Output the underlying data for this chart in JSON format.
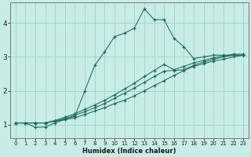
{
  "xlabel": "Humidex (Indice chaleur)",
  "bg_color": "#c8ece6",
  "grid_color": "#9fd4ca",
  "line_color": "#1e6b5e",
  "xlim": [
    -0.5,
    23.5
  ],
  "ylim": [
    0.6,
    4.6
  ],
  "xticks": [
    0,
    1,
    2,
    3,
    4,
    5,
    6,
    7,
    8,
    9,
    10,
    11,
    12,
    13,
    14,
    15,
    16,
    17,
    18,
    19,
    20,
    21,
    22,
    23
  ],
  "yticks": [
    1,
    2,
    3,
    4
  ],
  "lines": [
    {
      "x": [
        0,
        1,
        2,
        3,
        4,
        5,
        6,
        7,
        8,
        9,
        10,
        11,
        12,
        13,
        14,
        15,
        16,
        17,
        18,
        19,
        20,
        21,
        22,
        23
      ],
      "y": [
        1.05,
        1.05,
        0.92,
        0.93,
        1.05,
        1.15,
        1.25,
        2.0,
        2.75,
        3.15,
        3.6,
        3.7,
        3.85,
        4.42,
        4.1,
        4.1,
        3.55,
        3.3,
        2.95,
        3.0,
        3.05,
        3.05,
        3.05,
        3.05
      ]
    },
    {
      "x": [
        0,
        1,
        2,
        3,
        4,
        5,
        6,
        7,
        8,
        9,
        10,
        11,
        12,
        13,
        14,
        15,
        16,
        17,
        18,
        19,
        20,
        21,
        22,
        23
      ],
      "y": [
        1.05,
        1.05,
        1.05,
        1.05,
        1.1,
        1.15,
        1.2,
        1.3,
        1.4,
        1.5,
        1.62,
        1.72,
        1.85,
        2.0,
        2.15,
        2.3,
        2.45,
        2.6,
        2.72,
        2.8,
        2.88,
        2.93,
        3.0,
        3.05
      ]
    },
    {
      "x": [
        0,
        1,
        2,
        3,
        4,
        5,
        6,
        7,
        8,
        9,
        10,
        11,
        12,
        13,
        14,
        15,
        16,
        17,
        18,
        19,
        20,
        21,
        22,
        23
      ],
      "y": [
        1.05,
        1.05,
        1.05,
        1.05,
        1.1,
        1.18,
        1.28,
        1.38,
        1.5,
        1.62,
        1.78,
        1.93,
        2.08,
        2.25,
        2.42,
        2.58,
        2.6,
        2.62,
        2.75,
        2.85,
        2.93,
        3.0,
        3.05,
        3.05
      ]
    },
    {
      "x": [
        0,
        1,
        2,
        3,
        4,
        5,
        6,
        7,
        8,
        9,
        10,
        11,
        12,
        13,
        14,
        15,
        16,
        17,
        18,
        19,
        20,
        21,
        22,
        23
      ],
      "y": [
        1.05,
        1.05,
        1.05,
        1.05,
        1.12,
        1.22,
        1.32,
        1.45,
        1.58,
        1.72,
        1.88,
        2.05,
        2.22,
        2.42,
        2.6,
        2.78,
        2.62,
        2.72,
        2.82,
        2.9,
        2.97,
        3.03,
        3.08,
        3.08
      ]
    }
  ]
}
